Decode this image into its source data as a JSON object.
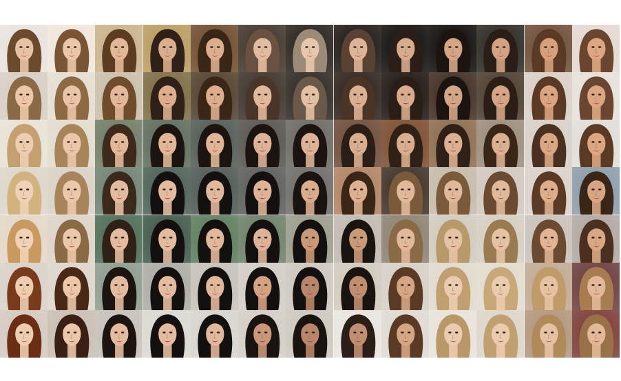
{
  "grid": {
    "rows": 7,
    "cols": 13,
    "description_free": true,
    "tiles": [
      [
        {
          "bg": "#e8e2dc",
          "hair": "#6b4a2e",
          "skin": "#e8c2a4",
          "lip": "#b8505a"
        },
        {
          "bg": "#efe6da",
          "hair": "#7a5535",
          "skin": "#ebc6a8",
          "lip": "#b8505a"
        },
        {
          "bg": "#c9b18a",
          "hair": "#5d3d22",
          "skin": "#e3b898",
          "lip": "#b04a52"
        },
        {
          "bg": "#b89a5e",
          "hair": "#2f2117",
          "skin": "#d9ae8c",
          "lip": "#a8404a"
        },
        {
          "bg": "#6d4a2a",
          "hair": "#3a2616",
          "skin": "#dcae8e",
          "lip": "#a8404a"
        },
        {
          "bg": "#3e3328",
          "hair": "#6a5140",
          "skin": "#e2bca0",
          "lip": "#b25058"
        },
        {
          "bg": "#262019",
          "hair": "#9a8a76",
          "skin": "#e6c6ac",
          "lip": "#b25058"
        },
        {
          "bg": "#1c1712",
          "hair": "#5a4232",
          "skin": "#ddb496",
          "lip": "#a8404a"
        },
        {
          "bg": "#0f0c0a",
          "hair": "#2a1e16",
          "skin": "#d7ab8c",
          "lip": "#a33c46"
        },
        {
          "bg": "#0c0a08",
          "hair": "#1c1410",
          "skin": "#d2a586",
          "lip": "#a33c46"
        },
        {
          "bg": "#2a2620",
          "hair": "#2a1e16",
          "skin": "#d2a283",
          "lip": "#a84a4c"
        },
        {
          "bg": "#6b4c36",
          "hair": "#5a3a24",
          "skin": "#d6a07a",
          "lip": "#b05448"
        },
        {
          "bg": "#e2d8cf",
          "hair": "#6a4630",
          "skin": "#dca780",
          "lip": "#b05448"
        }
      ],
      [
        {
          "bg": "#d6cdc2",
          "hair": "#8a6a44",
          "skin": "#ebc6a8",
          "lip": "#b8505a"
        },
        {
          "bg": "#e4dccf",
          "hair": "#8c6a44",
          "skin": "#eac4a6",
          "lip": "#b8505a"
        },
        {
          "bg": "#c8bea8",
          "hair": "#6e4c2c",
          "skin": "#e3b898",
          "lip": "#b04a52"
        },
        {
          "bg": "#7c6a40",
          "hair": "#2f2117",
          "skin": "#dcae8e",
          "lip": "#a8404a"
        },
        {
          "bg": "#4f3e2a",
          "hair": "#3a2616",
          "skin": "#dcae8e",
          "lip": "#a8404a"
        },
        {
          "bg": "#3a3128",
          "hair": "#4a3628",
          "skin": "#e0b89a",
          "lip": "#b04a52"
        },
        {
          "bg": "#2c2620",
          "hair": "#6a5848",
          "skin": "#e2c0a4",
          "lip": "#b04a52"
        },
        {
          "bg": "#2a2018",
          "hair": "#4a3426",
          "skin": "#dbb092",
          "lip": "#a8404a"
        },
        {
          "bg": "#1a1410",
          "hair": "#2a1e16",
          "skin": "#d7ab8c",
          "lip": "#a33c46"
        },
        {
          "bg": "#3c2a1e",
          "hair": "#1c1410",
          "skin": "#d4a688",
          "lip": "#a33c46"
        },
        {
          "bg": "#4a3a2c",
          "hair": "#2a1e16",
          "skin": "#d4a484",
          "lip": "#a84a4c"
        },
        {
          "bg": "#d8cec4",
          "hair": "#5a3a24",
          "skin": "#d9a47e",
          "lip": "#b05448"
        },
        {
          "bg": "#e6e0da",
          "hair": "#6a4630",
          "skin": "#dca780",
          "lip": "#b05448"
        }
      ],
      [
        {
          "bg": "#e8e0d4",
          "hair": "#c4a070",
          "skin": "#edcdb0",
          "lip": "#c06070"
        },
        {
          "bg": "#e2dacd",
          "hair": "#a8845a",
          "skin": "#ebc6a8",
          "lip": "#b8505a"
        },
        {
          "bg": "#6e7a64",
          "hair": "#3e2a1c",
          "skin": "#e3b898",
          "lip": "#b04a52"
        },
        {
          "bg": "#5a6a58",
          "hair": "#1c1410",
          "skin": "#e0b696",
          "lip": "#a33c46"
        },
        {
          "bg": "#4e5852",
          "hair": "#1c1410",
          "skin": "#e0b696",
          "lip": "#a33c46"
        },
        {
          "bg": "#55524c",
          "hair": "#1c1410",
          "skin": "#ddb296",
          "lip": "#a33c46"
        },
        {
          "bg": "#6a6660",
          "hair": "#1c1410",
          "skin": "#ddb296",
          "lip": "#a33c46"
        },
        {
          "bg": "#6c4a36",
          "hair": "#2a1e16",
          "skin": "#d9ae8e",
          "lip": "#a8404a"
        },
        {
          "bg": "#7a4a2c",
          "hair": "#2f2117",
          "skin": "#d9ae8e",
          "lip": "#a8404a"
        },
        {
          "bg": "#8a6a4a",
          "hair": "#2f2117",
          "skin": "#dab090",
          "lip": "#a8404a"
        },
        {
          "bg": "#9a8a7a",
          "hair": "#3a2616",
          "skin": "#dab090",
          "lip": "#b04a52"
        },
        {
          "bg": "#d6cec6",
          "hair": "#4a3020",
          "skin": "#d9a882",
          "lip": "#b05448"
        },
        {
          "bg": "#e0dcd8",
          "hair": "#5a3a24",
          "skin": "#dba680",
          "lip": "#b05448"
        }
      ],
      [
        {
          "bg": "#dcd4c8",
          "hair": "#d2b27e",
          "skin": "#efd2b6",
          "lip": "#c06070"
        },
        {
          "bg": "#d8d0c4",
          "hair": "#a8845a",
          "skin": "#ebc8aa",
          "lip": "#b8505a"
        },
        {
          "bg": "#6e8070",
          "hair": "#3a2a1e",
          "skin": "#e3bca0",
          "lip": "#b04a52"
        },
        {
          "bg": "#4a5e52",
          "hair": "#141010",
          "skin": "#e3bca0",
          "lip": "#a33c46"
        },
        {
          "bg": "#4c5652",
          "hair": "#141010",
          "skin": "#e0b89c",
          "lip": "#a33c46"
        },
        {
          "bg": "#5a5a58",
          "hair": "#141010",
          "skin": "#ddb296",
          "lip": "#a33c46"
        },
        {
          "bg": "#6c6a66",
          "hair": "#1a1410",
          "skin": "#d9ac8e",
          "lip": "#a33c46"
        },
        {
          "bg": "#b08060",
          "hair": "#3a2616",
          "skin": "#dcb090",
          "lip": "#b04a52"
        },
        {
          "bg": "#3c2e24",
          "hair": "#7a5a3a",
          "skin": "#e0b89a",
          "lip": "#b04a52"
        },
        {
          "bg": "#c4b8a8",
          "hair": "#7a5a3a",
          "skin": "#e0b89a",
          "lip": "#b04a52"
        },
        {
          "bg": "#d0c6bc",
          "hair": "#6a4a30",
          "skin": "#e0b89a",
          "lip": "#b04a52"
        },
        {
          "bg": "#d8d0c8",
          "hair": "#5a3a24",
          "skin": "#dcae8c",
          "lip": "#b05448"
        },
        {
          "bg": "#8a9aa8",
          "hair": "#3a2616",
          "skin": "#d6a684",
          "lip": "#b05448"
        }
      ],
      [
        {
          "bg": "#e2d6c6",
          "hair": "#c89a60",
          "skin": "#efd2b6",
          "lip": "#c06070"
        },
        {
          "bg": "#dcd2c6",
          "hair": "#8a6a44",
          "skin": "#ebc8aa",
          "lip": "#b8505a"
        },
        {
          "bg": "#4a6a52",
          "hair": "#2f2117",
          "skin": "#e3bca0",
          "lip": "#b04a52"
        },
        {
          "bg": "#3e5648",
          "hair": "#141010",
          "skin": "#e3bca0",
          "lip": "#a33c46"
        },
        {
          "bg": "#5a7a5a",
          "hair": "#141010",
          "skin": "#e0b89c",
          "lip": "#a33c46"
        },
        {
          "bg": "#6a7e66",
          "hair": "#141010",
          "skin": "#ddb296",
          "lip": "#a33c46"
        },
        {
          "bg": "#9a9a8a",
          "hair": "#141010",
          "skin": "#c99a78",
          "lip": "#a33c46"
        },
        {
          "bg": "#c0b8ae",
          "hair": "#1a1410",
          "skin": "#c99a78",
          "lip": "#a8404a"
        },
        {
          "bg": "#8a8070",
          "hair": "#8a6a44",
          "skin": "#e0b89a",
          "lip": "#b04a52"
        },
        {
          "bg": "#d0c8bc",
          "hair": "#b89a6a",
          "skin": "#e6c2a4",
          "lip": "#b8505a"
        },
        {
          "bg": "#d4ccc0",
          "hair": "#9a7a50",
          "skin": "#e6c2a4",
          "lip": "#b8505a"
        },
        {
          "bg": "#c8c0b8",
          "hair": "#6a4a30",
          "skin": "#e0b494",
          "lip": "#b05448"
        },
        {
          "bg": "#b0a6a0",
          "hair": "#4a3020",
          "skin": "#d9a882",
          "lip": "#b05448"
        }
      ],
      [
        {
          "bg": "#d8d0c8",
          "hair": "#7a3a1c",
          "skin": "#edcdb0",
          "lip": "#c06070"
        },
        {
          "bg": "#dcd4ca",
          "hair": "#4a2816",
          "skin": "#ebc6a8",
          "lip": "#b8505a"
        },
        {
          "bg": "#8a9a8a",
          "hair": "#1c1410",
          "skin": "#e3bca0",
          "lip": "#b04a52"
        },
        {
          "bg": "#aaaaa2",
          "hair": "#141010",
          "skin": "#e3bca0",
          "lip": "#a33c46"
        },
        {
          "bg": "#c4c0b8",
          "hair": "#141010",
          "skin": "#e0b89c",
          "lip": "#a33c46"
        },
        {
          "bg": "#d0ccc4",
          "hair": "#141010",
          "skin": "#d4a282",
          "lip": "#a33c46"
        },
        {
          "bg": "#ccc6bc",
          "hair": "#141010",
          "skin": "#b8866a",
          "lip": "#a33c46"
        },
        {
          "bg": "#d0c8bc",
          "hair": "#1a1410",
          "skin": "#c08e70",
          "lip": "#a8404a"
        },
        {
          "bg": "#d6cec4",
          "hair": "#5a3a24",
          "skin": "#d4a684",
          "lip": "#b04a52"
        },
        {
          "bg": "#e0d8cc",
          "hair": "#c0a070",
          "skin": "#ebcbae",
          "lip": "#b8505a"
        },
        {
          "bg": "#e2dace",
          "hair": "#c8a878",
          "skin": "#ebcbae",
          "lip": "#b8505a"
        },
        {
          "bg": "#c0a890",
          "hair": "#c09a68",
          "skin": "#e6c2a4",
          "lip": "#b8505a"
        },
        {
          "bg": "#6a3a3a",
          "hair": "#a67c50",
          "skin": "#e2b898",
          "lip": "#b05448"
        }
      ],
      [
        {
          "bg": "#d2c8be",
          "hair": "#6a2e14",
          "skin": "#edcdb0",
          "lip": "#c06070"
        },
        {
          "bg": "#c8bcb0",
          "hair": "#3a2014",
          "skin": "#ebc6a8",
          "lip": "#b8505a"
        },
        {
          "bg": "#c4c0b8",
          "hair": "#1c1410",
          "skin": "#e3bca0",
          "lip": "#b04a52"
        },
        {
          "bg": "#dad6d0",
          "hair": "#141010",
          "skin": "#e3bca0",
          "lip": "#a33c46"
        },
        {
          "bg": "#d6d2cc",
          "hair": "#141010",
          "skin": "#e0b89c",
          "lip": "#a33c46"
        },
        {
          "bg": "#d2ccc4",
          "hair": "#1a1410",
          "skin": "#c89878",
          "lip": "#a33c46"
        },
        {
          "bg": "#ccc6bc",
          "hair": "#1a1410",
          "skin": "#b8866a",
          "lip": "#a33c46"
        },
        {
          "bg": "#e8e4de",
          "hair": "#2a1e16",
          "skin": "#c08e70",
          "lip": "#a8404a"
        },
        {
          "bg": "#ded8d0",
          "hair": "#5a3a24",
          "skin": "#d4a684",
          "lip": "#b04a52"
        },
        {
          "bg": "#e8e2d8",
          "hair": "#b89868",
          "skin": "#ebcbae",
          "lip": "#b8505a"
        },
        {
          "bg": "#dcd4c8",
          "hair": "#c0a070",
          "skin": "#ebcbae",
          "lip": "#b8505a"
        },
        {
          "bg": "#b0947a",
          "hair": "#b08a5a",
          "skin": "#e6c2a4",
          "lip": "#b8505a"
        },
        {
          "bg": "#7a3a34",
          "hair": "#9a7048",
          "skin": "#e2b898",
          "lip": "#b05448"
        }
      ]
    ]
  }
}
